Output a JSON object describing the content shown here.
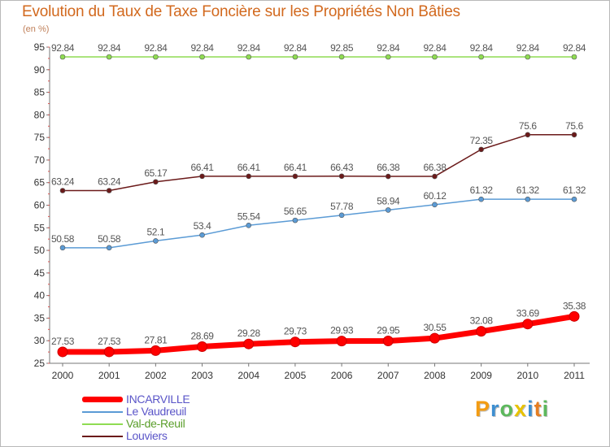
{
  "chart_data": {
    "type": "line",
    "title": "Evolution du Taux de Taxe Foncière sur les Propriétés Non Bâties",
    "unit_label": "(en %)",
    "categories": [
      "2000",
      "2001",
      "2002",
      "2003",
      "2004",
      "2005",
      "2006",
      "2007",
      "2008",
      "2009",
      "2010",
      "2011"
    ],
    "ylim": [
      25,
      95
    ],
    "yticks": [
      "25",
      "30",
      "35",
      "40",
      "45",
      "50",
      "55",
      "60",
      "65",
      "70",
      "75",
      "80",
      "85",
      "90",
      "95"
    ],
    "grid": false,
    "legend_position": "bottom-left",
    "series": [
      {
        "name": "INCARVILLE",
        "color": "#ff0000",
        "emphasis": "thick",
        "values": [
          27.53,
          27.53,
          27.81,
          28.69,
          29.28,
          29.73,
          29.93,
          29.95,
          30.55,
          32.08,
          33.69,
          35.38
        ],
        "labels": [
          "27.53",
          "27.53",
          "27.81",
          "28.69",
          "29.28",
          "29.73",
          "29.93",
          "29.95",
          "30.55",
          "32.08",
          "33.69",
          "35.38"
        ]
      },
      {
        "name": "Le Vaudreuil",
        "color": "#5b9bd5",
        "values": [
          50.58,
          50.58,
          52.1,
          53.4,
          55.54,
          56.65,
          57.78,
          58.94,
          60.12,
          61.32,
          61.32,
          61.32
        ],
        "labels": [
          "50.58",
          "50.58",
          "52.1",
          "53.4",
          "55.54",
          "56.65",
          "57.78",
          "58.94",
          "60.12",
          "61.32",
          "61.32",
          "61.32"
        ]
      },
      {
        "name": "Val-de-Reuil",
        "color": "#8fdc52",
        "values": [
          92.84,
          92.84,
          92.84,
          92.84,
          92.84,
          92.84,
          92.85,
          92.84,
          92.84,
          92.84,
          92.84,
          92.84
        ],
        "labels": [
          "92.84",
          "92.84",
          "92.84",
          "92.84",
          "92.84",
          "92.84",
          "92.85",
          "92.84",
          "92.84",
          "92.84",
          "92.84",
          "92.84"
        ]
      },
      {
        "name": "Louviers",
        "color": "#6b1a1a",
        "values": [
          63.24,
          63.24,
          65.17,
          66.41,
          66.41,
          66.41,
          66.43,
          66.38,
          66.38,
          72.35,
          75.6,
          75.6
        ],
        "labels": [
          "63.24",
          "63.24",
          "65.17",
          "66.41",
          "66.41",
          "66.41",
          "66.43",
          "66.38",
          "66.38",
          "72.35",
          "75.6",
          "75.6"
        ]
      }
    ]
  },
  "branding": {
    "logo_letters": [
      "P",
      "r",
      "o",
      "x",
      "i",
      "t",
      "i"
    ],
    "logo_colors": [
      "#f39c12",
      "#3d8fd1",
      "#5cb85c",
      "#e8c200",
      "#3d8fd1",
      "#e67e22",
      "#5cb85c"
    ]
  }
}
